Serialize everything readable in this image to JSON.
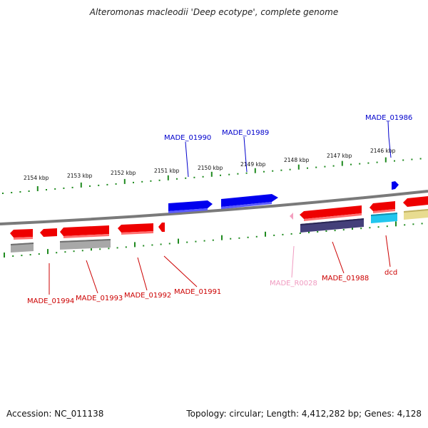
{
  "title": "Alteromonas macleodii 'Deep ecotype', complete genome",
  "footer": {
    "accession": "Accession: NC_011138",
    "topology": "Topology: circular; Length: 4,412,282 bp; Genes: 4,128"
  },
  "scale": {
    "ticks": [
      "2154 kbp",
      "2153 kbp",
      "2152 kbp",
      "2151 kbp",
      "2150 kbp",
      "2149 kbp",
      "2148 kbp",
      "2147 kbp",
      "2146 kbp"
    ]
  },
  "colors": {
    "backbone": "#7a7a7a",
    "forward_gene": "#0000ee",
    "reverse_gene": "#ee0000",
    "rna_gene": "#f4a0c0",
    "tick": "#1f8a1f",
    "cds_gray": "#a8a8a8",
    "cds_navy": "#44407a",
    "cds_cyan": "#22c6ee",
    "cds_yellow": "#e8dc90"
  },
  "genes": {
    "forward": [
      {
        "label": "MADE_01990",
        "color": "#0000cc"
      },
      {
        "label": "MADE_01989",
        "color": "#0000cc"
      },
      {
        "label": "MADE_01986",
        "color": "#0000cc"
      }
    ],
    "reverse": [
      {
        "label": "MADE_01994",
        "color": "#cc0000"
      },
      {
        "label": "MADE_01993",
        "color": "#cc0000"
      },
      {
        "label": "MADE_01992",
        "color": "#cc0000"
      },
      {
        "label": "MADE_01991",
        "color": "#cc0000"
      },
      {
        "label": "MADE_R0028",
        "color": "#f09ac0"
      },
      {
        "label": "MADE_01988",
        "color": "#cc0000"
      },
      {
        "label": "dcd",
        "color": "#cc0000"
      }
    ]
  }
}
